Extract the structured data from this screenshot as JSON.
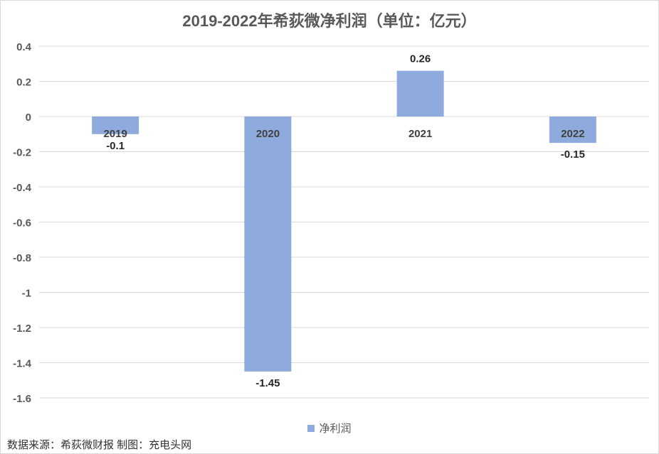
{
  "title": "2019-2022年希荻微净利润（单位：亿元）",
  "source_note": "数据来源：希荻微财报 制图：充电头网",
  "chart_data": {
    "type": "bar",
    "categories": [
      "2019",
      "2020",
      "2021",
      "2022"
    ],
    "series": [
      {
        "name": "净利润",
        "values": [
          -0.1,
          -1.45,
          0.26,
          -0.15
        ]
      }
    ],
    "data_labels": [
      "-0.1",
      "-1.45",
      "0.26",
      "-0.15"
    ],
    "y_ticks": [
      0.4,
      0.2,
      0,
      -0.2,
      -0.4,
      -0.6,
      -0.8,
      -1,
      -1.2,
      -1.4,
      -1.6
    ],
    "y_tick_labels": [
      "0.4",
      "0.2",
      "0",
      "-0.2",
      "-0.4",
      "-0.6",
      "-0.8",
      "-1",
      "-1.2",
      "-1.4",
      "-1.6"
    ],
    "ylim": [
      -1.6,
      0.4
    ],
    "grid": true,
    "legend_position": "bottom",
    "bar_color": "#8faadc"
  }
}
